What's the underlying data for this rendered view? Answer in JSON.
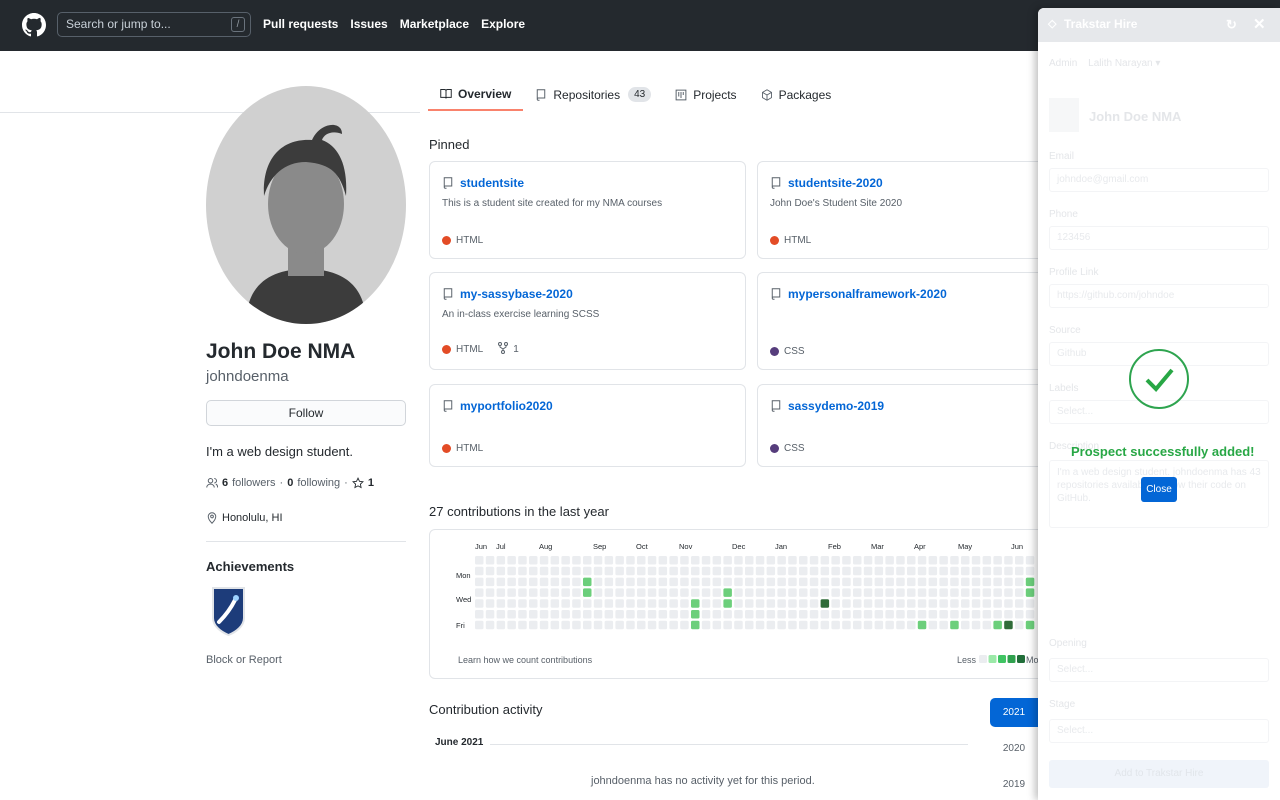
{
  "header": {
    "search_placeholder": "Search or jump to...",
    "search_key": "/",
    "nav": [
      "Pull requests",
      "Issues",
      "Marketplace",
      "Explore"
    ]
  },
  "tabs": [
    {
      "label": "Overview",
      "count": null
    },
    {
      "label": "Repositories",
      "count": "43"
    },
    {
      "label": "Projects",
      "count": null
    },
    {
      "label": "Packages",
      "count": null
    }
  ],
  "profile": {
    "name": "John Doe NMA",
    "login": "johndoenma",
    "follow_label": "Follow",
    "bio": "I'm a web design student.",
    "followers_count": "6",
    "followers_label": "followers",
    "following_count": "0",
    "following_label": "following",
    "stars": "1",
    "location": "Honolulu, HI",
    "achievements_title": "Achievements",
    "block_label": "Block or Report"
  },
  "pinned": {
    "title": "Pinned",
    "repos": [
      {
        "name": "studentsite",
        "desc": "This is a student site created for my NMA courses",
        "lang": "HTML",
        "color": "#e34c26",
        "forks": null
      },
      {
        "name": "studentsite-2020",
        "desc": "John Doe's Student Site 2020",
        "lang": "HTML",
        "color": "#e34c26",
        "forks": null
      },
      {
        "name": "my-sassybase-2020",
        "desc": "An in-class exercise learning SCSS",
        "lang": "HTML",
        "color": "#e34c26",
        "forks": "1"
      },
      {
        "name": "mypersonalframework-2020",
        "desc": "",
        "lang": "CSS",
        "color": "#563d7c",
        "forks": null
      },
      {
        "name": "myportfolio2020",
        "desc": "",
        "lang": "HTML",
        "color": "#e34c26",
        "forks": null
      },
      {
        "name": "sassydemo-2019",
        "desc": "",
        "lang": "CSS",
        "color": "#563d7c",
        "forks": null
      }
    ]
  },
  "contributions": {
    "title": "27 contributions in the last year",
    "months": [
      "Jun",
      "Jul",
      "Aug",
      "Sep",
      "Oct",
      "Nov",
      "Dec",
      "Jan",
      "Feb",
      "Mar",
      "Apr",
      "May",
      "Jun"
    ],
    "days": [
      "Mon",
      "Wed",
      "Fri"
    ],
    "learn": "Learn how we count contributions",
    "less": "Less",
    "more": "More",
    "cells": [
      [
        10,
        2,
        1
      ],
      [
        10,
        3,
        1
      ],
      [
        20,
        4,
        1
      ],
      [
        20,
        5,
        1
      ],
      [
        20,
        6,
        1
      ],
      [
        23,
        3,
        1
      ],
      [
        23,
        4,
        1
      ],
      [
        32,
        4,
        3
      ],
      [
        41,
        6,
        1
      ],
      [
        44,
        6,
        1
      ],
      [
        44,
        7,
        1
      ],
      [
        46,
        7,
        3
      ],
      [
        48,
        6,
        1
      ],
      [
        48,
        7,
        1
      ],
      [
        49,
        6,
        3
      ],
      [
        49,
        7,
        1
      ],
      [
        51,
        2,
        1
      ],
      [
        51,
        3,
        1
      ],
      [
        51,
        6,
        1
      ],
      [
        51,
        7,
        3
      ],
      [
        53,
        2,
        1
      ],
      [
        53,
        3,
        1
      ],
      [
        53,
        6,
        1
      ],
      [
        53,
        7,
        1
      ]
    ]
  },
  "activity": {
    "title": "Contribution activity",
    "period": "June 2021",
    "empty": "johndoenma has no activity yet for this period.",
    "years": [
      "2021",
      "2020",
      "2019"
    ]
  },
  "trakstar": {
    "title": "Trakstar Hire",
    "admin_label": "Admin",
    "admin_name": "Lalith Narayan",
    "candidate_name": "John Doe NMA",
    "email_label": "Email",
    "email": "johndoe@gmail.com",
    "phone_label": "Phone",
    "phone": "123456",
    "link_label": "Profile Link",
    "link": "https://github.com/johndoe",
    "source_label": "Source",
    "source": "Github",
    "labels_label": "Labels",
    "labels_placeholder": "Select...",
    "desc_label": "Description",
    "desc": "I'm a web design student. johndoenma has 43 repositories available. Follow their code on GitHub.",
    "opening_label": "Opening",
    "opening_placeholder": "Select...",
    "stage_label": "Stage",
    "stage_placeholder": "Select...",
    "add_button": "Add to Trakstar Hire",
    "success_message": "Prospect successfully added!",
    "close_button": "Close"
  }
}
